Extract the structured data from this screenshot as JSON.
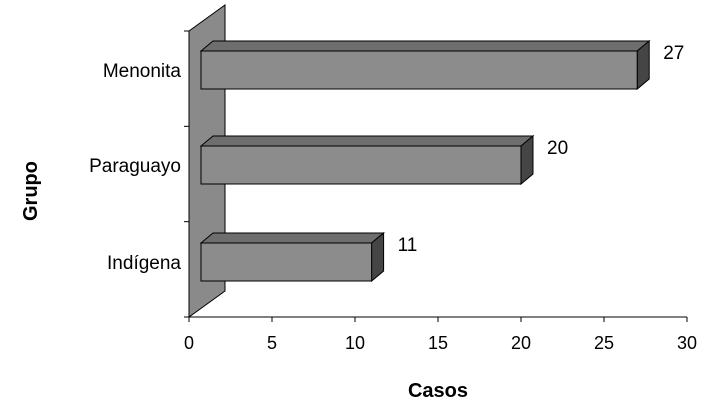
{
  "chart_data": {
    "type": "bar",
    "orientation": "horizontal",
    "three_d": true,
    "title": "",
    "xlabel": "Casos",
    "ylabel": "Grupo",
    "categories": [
      "Menonita",
      "Paraguayo",
      "Indígena"
    ],
    "values": [
      27,
      20,
      11
    ],
    "data_labels": [
      "27",
      "20",
      "11"
    ],
    "xlim": [
      0,
      30
    ],
    "xticks": [
      "0",
      "5",
      "10",
      "15",
      "20",
      "25",
      "30"
    ],
    "grid": false,
    "legend": "none",
    "colors": {
      "bar_front": "#8c8c8c",
      "bar_top": "#6e6e6e",
      "bar_side": "#454545",
      "wall": "#8a8a8a",
      "stroke": "#000000"
    }
  }
}
